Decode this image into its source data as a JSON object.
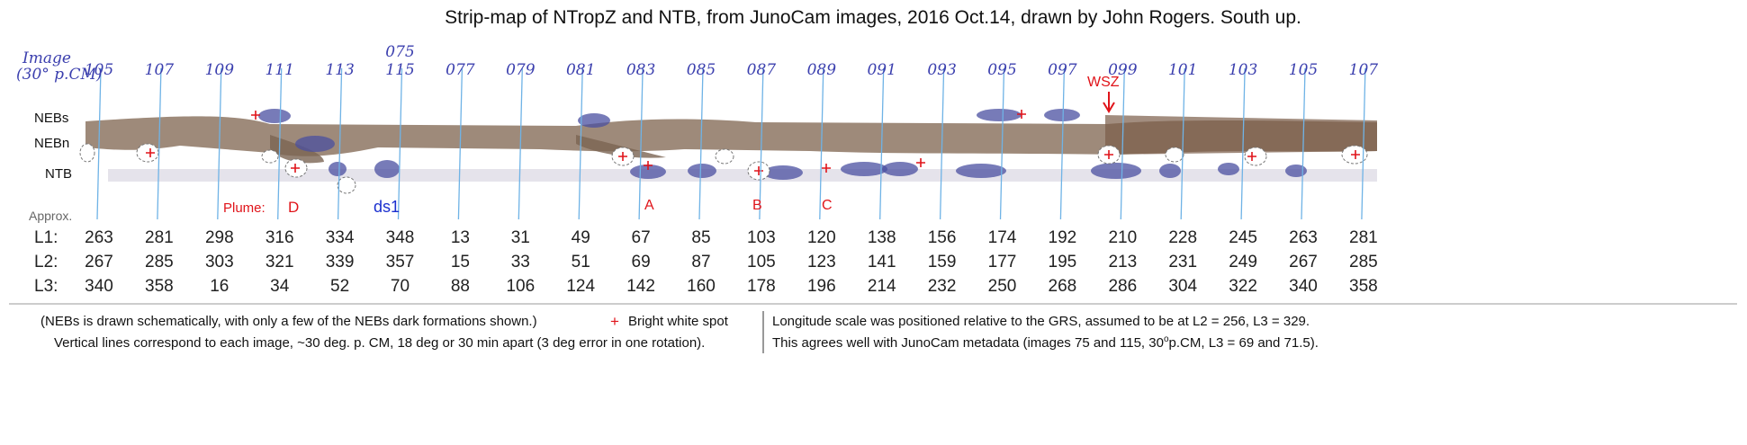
{
  "header": {
    "title": "Strip-map of NTropZ and NTB, from JunoCam images, 2016 Oct.14, drawn by John Rogers.  South up."
  },
  "map": {
    "image_axis_label": [
      "Image",
      "(30° p.CM)"
    ],
    "images": [
      "105",
      "107",
      "109",
      "111",
      "113",
      "115",
      "077",
      "079",
      "081",
      "083",
      "085",
      "087",
      "089",
      "091",
      "093",
      "095",
      "097",
      "099",
      "101",
      "103",
      "105",
      "107"
    ],
    "extra_image": "075",
    "band_labels": [
      "NEBs",
      "NEBn",
      "NTB"
    ],
    "annotations": {
      "wsz": "WSZ",
      "plume": "Plume:",
      "d": "D",
      "ds1": "ds1",
      "a": "A",
      "b": "B",
      "c": "C"
    }
  },
  "longitudes": {
    "approx": "Approx.",
    "rows": [
      {
        "label": "L1:",
        "values": [
          263,
          281,
          298,
          316,
          334,
          348,
          13,
          31,
          49,
          67,
          85,
          103,
          120,
          138,
          156,
          174,
          192,
          210,
          228,
          245,
          263,
          281
        ]
      },
      {
        "label": "L2:",
        "values": [
          267,
          285,
          303,
          321,
          339,
          357,
          15,
          33,
          51,
          69,
          87,
          105,
          123,
          141,
          159,
          177,
          195,
          213,
          231,
          249,
          267,
          285
        ]
      },
      {
        "label": "L3:",
        "values": [
          340,
          358,
          16,
          34,
          52,
          70,
          88,
          106,
          124,
          142,
          160,
          178,
          196,
          214,
          232,
          250,
          268,
          286,
          304,
          322,
          340,
          358
        ]
      }
    ]
  },
  "footer": {
    "note1": "(NEBs is drawn schematically, with only a few of the NEBs dark formations shown.)",
    "legend_symbol": "+",
    "legend_text": "Bright white spot",
    "note2": "Vertical lines correspond to each image, ~30 deg. p. CM, 18 deg or 30 min apart (3 deg error in one rotation).",
    "note3": "Longitude scale was positioned relative to the GRS, assumed to be at L2 = 256, L3 = 329.",
    "note4": [
      "This agrees well with JunoCam metadata (images 75 and 115, 30",
      "o",
      "p.CM, L3 = 69 and 71.5)."
    ]
  }
}
